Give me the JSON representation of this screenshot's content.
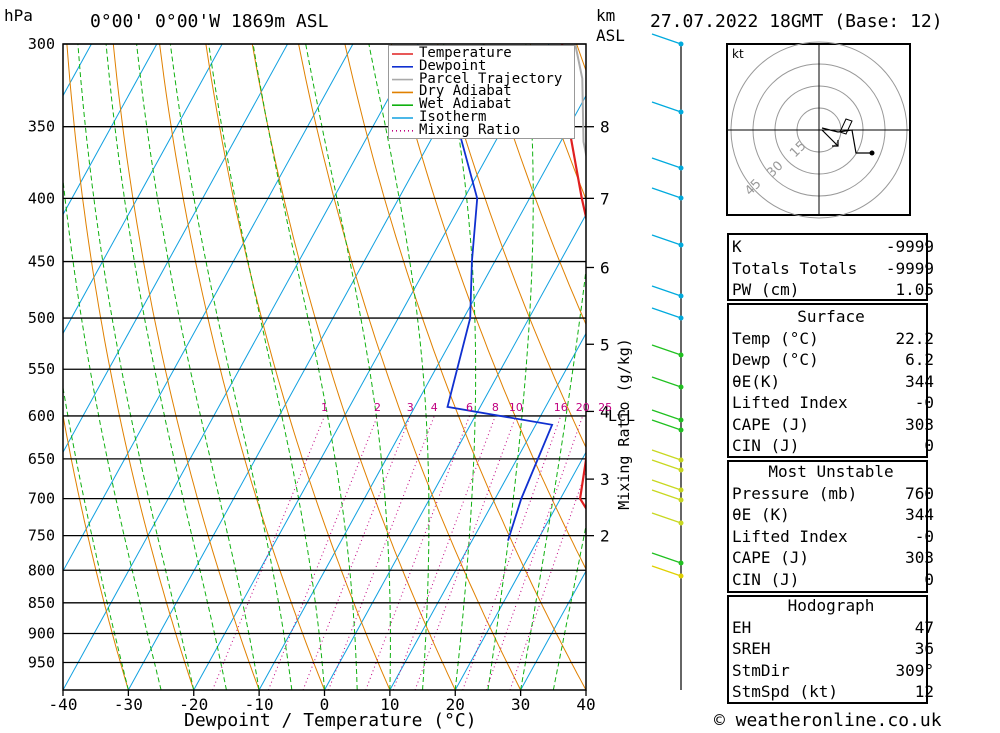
{
  "header": {
    "hpa_label": "hPa",
    "location": "0°00' 0°00'W 1869m ASL",
    "km_label": "km",
    "asl_label": "ASL",
    "datetime": "27.07.2022 18GMT (Base: 12)"
  },
  "footer": {
    "xlabel": "Dewpoint / Temperature (°C)",
    "site": "© weatheronline.co.uk"
  },
  "chart_data": {
    "type": "skew-t",
    "pressure_levels": [
      300,
      350,
      400,
      450,
      500,
      550,
      600,
      650,
      700,
      750,
      800,
      850,
      900,
      950
    ],
    "x_ticks": [
      -40,
      -30,
      -20,
      -10,
      0,
      10,
      20,
      30,
      40
    ],
    "xlim": [
      -40,
      40
    ],
    "ylim": [
      1000,
      300
    ],
    "height_ticks": [
      {
        "label": "8",
        "p": 350
      },
      {
        "label": "7",
        "p": 400
      },
      {
        "label": "6",
        "p": 455
      },
      {
        "label": "5",
        "p": 525
      },
      {
        "label": "4",
        "p": 595
      },
      {
        "label": "3",
        "p": 675
      },
      {
        "label": "2",
        "p": 750
      }
    ],
    "lcl_label": "LCL",
    "lcl_pressure": 608,
    "mixing_ratio_label": "Mixing Ratio (g/kg)",
    "mixing_ratio_values": [
      "1",
      "2",
      "3",
      "4",
      "6",
      "8",
      "10",
      "16",
      "20",
      "25"
    ],
    "legend": [
      {
        "name": "Temperature",
        "color": "#e02020",
        "style": "solid"
      },
      {
        "name": "Dewpoint",
        "color": "#1030d0",
        "style": "solid"
      },
      {
        "name": "Parcel Trajectory",
        "color": "#aaaaaa",
        "style": "solid"
      },
      {
        "name": "Dry Adiabat",
        "color": "#e08000",
        "style": "solid"
      },
      {
        "name": "Wet Adiabat",
        "color": "#10b010",
        "style": "solid"
      },
      {
        "name": "Isotherm",
        "color": "#10a0e0",
        "style": "solid"
      },
      {
        "name": "Mixing Ratio",
        "color": "#c00080",
        "style": "dotted"
      }
    ],
    "series": [
      {
        "name": "Temperature",
        "points": [
          [
            757,
            30.5
          ],
          [
            700,
            23
          ],
          [
            610,
            18.5
          ],
          [
            600,
            19
          ],
          [
            500,
            12
          ],
          [
            450,
            5.5
          ],
          [
            400,
            -2
          ],
          [
            350,
            -10
          ],
          [
            300,
            -18
          ]
        ]
      },
      {
        "name": "Dewpoint",
        "points": [
          [
            757,
            15.5
          ],
          [
            700,
            14
          ],
          [
            610,
            12.5
          ],
          [
            590,
            -5
          ],
          [
            500,
            -9
          ],
          [
            450,
            -13.5
          ],
          [
            400,
            -18
          ],
          [
            350,
            -27
          ],
          [
            340,
            -33
          ]
        ]
      },
      {
        "name": "Parcel Trajectory",
        "points": [
          [
            757,
            30
          ],
          [
            700,
            25.5
          ],
          [
            608,
            20
          ],
          [
            550,
            16
          ],
          [
            500,
            12
          ],
          [
            450,
            7
          ],
          [
            400,
            0
          ],
          [
            360,
            -6.5
          ],
          [
            320,
            -12
          ],
          [
            300,
            -16
          ]
        ]
      }
    ],
    "hodograph": {
      "unit_label": "kt",
      "ring_labels": [
        "15",
        "30",
        "45"
      ]
    },
    "indices": {
      "general": [
        {
          "label": "K",
          "value": "-9999"
        },
        {
          "label": "Totals Totals",
          "value": "-9999"
        },
        {
          "label": "PW (cm)",
          "value": "1.05"
        }
      ],
      "surface": {
        "title": "Surface",
        "rows": [
          {
            "label": "Temp (°C)",
            "value": "22.2"
          },
          {
            "label": "Dewp (°C)",
            "value": "6.2"
          },
          {
            "label": "θE(K)",
            "value": "344"
          },
          {
            "label": "Lifted Index",
            "value": "-0"
          },
          {
            "label": "CAPE (J)",
            "value": "303"
          },
          {
            "label": "CIN (J)",
            "value": "0"
          }
        ]
      },
      "most_unstable": {
        "title": "Most Unstable",
        "rows": [
          {
            "label": "Pressure (mb)",
            "value": "760"
          },
          {
            "label": "θE (K)",
            "value": "344"
          },
          {
            "label": "Lifted Index",
            "value": "-0"
          },
          {
            "label": "CAPE (J)",
            "value": "303"
          },
          {
            "label": "CIN (J)",
            "value": "0"
          }
        ]
      },
      "hodograph": {
        "title": "Hodograph",
        "rows": [
          {
            "label": "EH",
            "value": "47"
          },
          {
            "label": "SREH",
            "value": "36"
          },
          {
            "label": "StmDir",
            "value": "309°"
          },
          {
            "label": "StmSpd (kt)",
            "value": "12"
          }
        ]
      }
    }
  }
}
